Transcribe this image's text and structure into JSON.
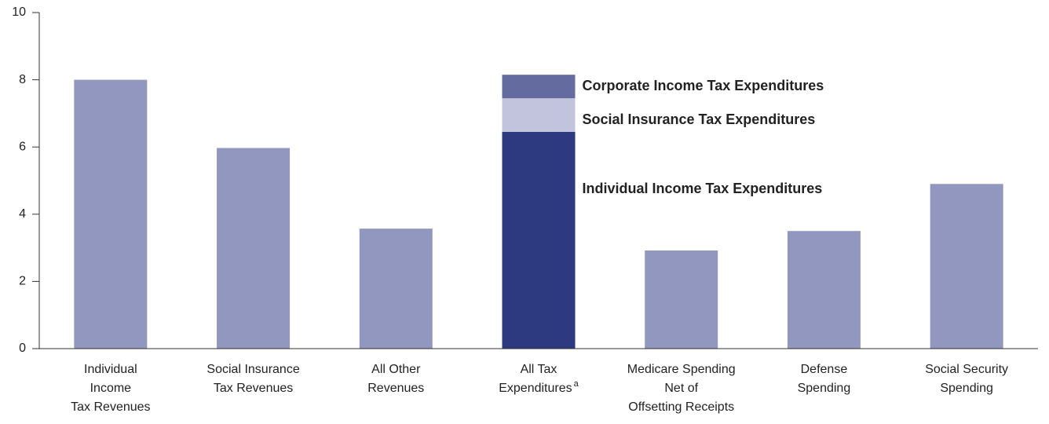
{
  "chart_data": {
    "type": "bar",
    "categories": [
      [
        "Individual",
        "Income",
        "Tax Revenues"
      ],
      [
        "Social Insurance",
        "Tax Revenues"
      ],
      [
        "All Other",
        "Revenues"
      ],
      [
        "All Tax",
        "Expenditures"
      ],
      [
        "Medicare Spending",
        "Net of",
        "Offsetting Receipts"
      ],
      [
        "Defense",
        "Spending"
      ],
      [
        "Social Security",
        "Spending"
      ]
    ],
    "footnote_mark": "a",
    "values": [
      8.0,
      5.97,
      3.57,
      null,
      2.92,
      3.5,
      4.9
    ],
    "color": "#9197be",
    "stack_series": [
      {
        "name": "Individual Income Tax Expenditures",
        "color": "#2e3a7f",
        "value": 6.45
      },
      {
        "name": "Social Insurance Tax Expenditures",
        "color": "#c2c4dd",
        "value": 1.0
      },
      {
        "name": "Corporate Income Tax Expenditures",
        "color": "#636b9f",
        "value": 0.7
      }
    ],
    "ylim": [
      0,
      10
    ],
    "yticks": [
      0,
      2,
      4,
      6,
      8,
      10
    ]
  }
}
